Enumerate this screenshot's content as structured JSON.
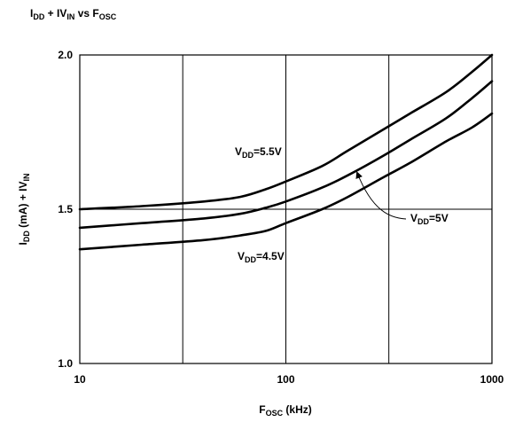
{
  "chart_data": {
    "type": "line",
    "title": {
      "main": "I",
      "main_sub": "DD",
      "mid": " + IV",
      "mid_sub": "IN",
      "tail": " vs F",
      "tail_sub": "OSC"
    },
    "xlabel": {
      "main": "F",
      "sub": "OSC",
      "tail": " (kHz)"
    },
    "ylabel": {
      "main": "I",
      "sub": "DD",
      "mid": " (mA) + IV",
      "sub2": "IN"
    },
    "x_scale": "log",
    "xlim": [
      10,
      1000
    ],
    "ylim": [
      1.0,
      2.0
    ],
    "x_ticks": [
      10,
      100,
      1000
    ],
    "x_tick_labels": [
      "10",
      "100",
      "1000"
    ],
    "y_ticks": [
      1.0,
      1.5,
      2.0
    ],
    "y_tick_labels": [
      "1.0",
      "1.5",
      "2.0"
    ],
    "grid": true,
    "series": [
      {
        "name": {
          "main": "V",
          "sub": "DD",
          "tail": "=5.5V"
        },
        "points": [
          [
            10,
            1.5
          ],
          [
            20,
            1.51
          ],
          [
            40,
            1.525
          ],
          [
            60,
            1.54
          ],
          [
            80,
            1.565
          ],
          [
            100,
            1.59
          ],
          [
            150,
            1.64
          ],
          [
            200,
            1.69
          ],
          [
            300,
            1.76
          ],
          [
            400,
            1.81
          ],
          [
            600,
            1.88
          ],
          [
            800,
            1.945
          ],
          [
            1000,
            2.0
          ]
        ]
      },
      {
        "name": {
          "main": "V",
          "sub": "DD",
          "tail": "=5V"
        },
        "points": [
          [
            10,
            1.44
          ],
          [
            20,
            1.455
          ],
          [
            40,
            1.47
          ],
          [
            60,
            1.485
          ],
          [
            80,
            1.505
          ],
          [
            100,
            1.525
          ],
          [
            150,
            1.57
          ],
          [
            200,
            1.61
          ],
          [
            300,
            1.675
          ],
          [
            400,
            1.725
          ],
          [
            600,
            1.795
          ],
          [
            800,
            1.86
          ],
          [
            1000,
            1.915
          ]
        ]
      },
      {
        "name": {
          "main": "V",
          "sub": "DD",
          "tail": "=4.5V"
        },
        "points": [
          [
            10,
            1.37
          ],
          [
            20,
            1.385
          ],
          [
            40,
            1.4
          ],
          [
            60,
            1.415
          ],
          [
            80,
            1.43
          ],
          [
            100,
            1.455
          ],
          [
            150,
            1.5
          ],
          [
            200,
            1.54
          ],
          [
            300,
            1.605
          ],
          [
            400,
            1.65
          ],
          [
            600,
            1.72
          ],
          [
            800,
            1.765
          ],
          [
            1000,
            1.81
          ]
        ]
      }
    ]
  }
}
